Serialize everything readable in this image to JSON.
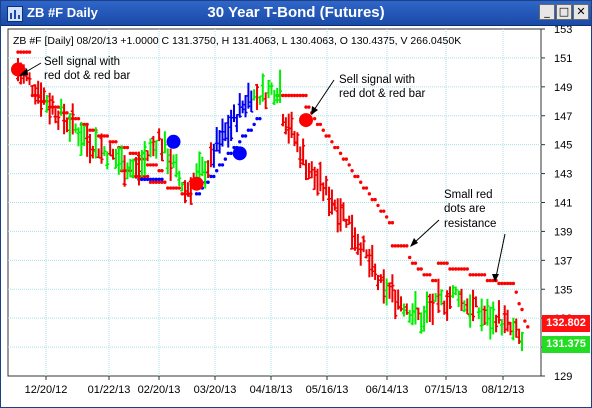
{
  "window": {
    "title": "ZB #F Daily",
    "chart_title": "30 Year T-Bond (Futures)",
    "controls": {
      "minimize": "_",
      "maximize": "□",
      "close": "✕"
    }
  },
  "header_line": "ZB #F [Daily] 08/20/13 +1.0000 C 131.3750, H 131.4063, L 130.4063, O 130.4375, V 266.0450K",
  "price_tags": {
    "red": "132.802",
    "green": "131.375"
  },
  "colors": {
    "up_bar": "#00ee00",
    "down_bar": "#ee0000",
    "blue_bar": "#0000ee",
    "grid": "#a8e0e8",
    "sell_signal": "#ff0000",
    "buy_signal": "#0000ff"
  },
  "annotations": [
    {
      "id": "sell-1",
      "lines": [
        "Sell signal with",
        "red dot & red bar"
      ]
    },
    {
      "id": "sell-2",
      "lines": [
        "Sell signal with",
        "red dot & red bar"
      ]
    },
    {
      "id": "resistance",
      "lines": [
        "Small red",
        "dots are",
        "resistance"
      ]
    }
  ],
  "chart_data": {
    "type": "ohlc",
    "title": "",
    "x_tick_labels": [
      "12/20/12",
      "01/22/13",
      "02/20/13",
      "03/20/13",
      "04/18/13",
      "05/16/13",
      "06/14/13",
      "07/15/13",
      "08/12/13"
    ],
    "y_ticks": [
      129,
      131,
      133,
      135,
      137,
      139,
      141,
      143,
      145,
      147,
      149,
      151,
      153
    ],
    "ylim": [
      129,
      153
    ],
    "grid": true,
    "last_close": 131.375,
    "last_high": 131.4063,
    "last_low": 130.4063,
    "last_open": 130.4375,
    "change": 1.0,
    "volume": "266.0450K",
    "price_segments": [
      {
        "bars": 10,
        "start": 150.2,
        "end": 148.3,
        "color": "red"
      },
      {
        "bars": 14,
        "start": 148.0,
        "end": 145.5,
        "color": "mixed"
      },
      {
        "bars": 18,
        "start": 145.3,
        "end": 143.2,
        "color": "mixed"
      },
      {
        "bars": 8,
        "start": 143.4,
        "end": 145.5,
        "color": "mixed"
      },
      {
        "bars": 8,
        "start": 145.0,
        "end": 142.3,
        "color": "mixed"
      },
      {
        "bars": 10,
        "start": 141.8,
        "end": 143.8,
        "color": "mixed"
      },
      {
        "bars": 14,
        "start": 144.5,
        "end": 148.6,
        "color": "blue"
      },
      {
        "bars": 10,
        "start": 148.3,
        "end": 149.0,
        "color": "mixed"
      },
      {
        "bars": 10,
        "start": 147.2,
        "end": 143.3,
        "color": "red"
      },
      {
        "bars": 12,
        "start": 143.0,
        "end": 140.2,
        "color": "red"
      },
      {
        "bars": 14,
        "start": 140.0,
        "end": 134.8,
        "color": "red"
      },
      {
        "bars": 14,
        "start": 135.0,
        "end": 132.8,
        "color": "mixed"
      },
      {
        "bars": 12,
        "start": 133.5,
        "end": 134.8,
        "color": "mixed"
      },
      {
        "bars": 12,
        "start": 134.2,
        "end": 132.8,
        "color": "mixed"
      },
      {
        "bars": 10,
        "start": 133.2,
        "end": 131.4,
        "color": "mixed"
      }
    ],
    "stop_dots": [
      {
        "from_bar": 0,
        "to_bar": 4,
        "level": 151.4,
        "color": "red"
      },
      {
        "from_bar": 5,
        "to_bar": 50,
        "level": 148.5,
        "to_level": 143.2,
        "color": "red"
      },
      {
        "from_bar": 36,
        "to_bar": 60,
        "level": 143.2,
        "to_level": 141.6,
        "color": "red"
      },
      {
        "from_bar": 42,
        "to_bar": 50,
        "level": 142.6,
        "color": "blue"
      },
      {
        "from_bar": 62,
        "to_bar": 84,
        "level": 141.5,
        "to_level": 146.9,
        "color": "blue"
      },
      {
        "from_bar": 90,
        "to_bar": 100,
        "level": 148.4,
        "color": "red"
      },
      {
        "from_bar": 100,
        "to_bar": 130,
        "level": 147.7,
        "to_level": 139.4,
        "color": "red"
      },
      {
        "from_bar": 130,
        "to_bar": 135,
        "level": 138.0,
        "color": "red"
      },
      {
        "from_bar": 136,
        "to_bar": 145,
        "level": 137.0,
        "to_level": 135.5,
        "color": "red"
      },
      {
        "from_bar": 146,
        "to_bar": 166,
        "level": 136.8,
        "to_level": 135.6,
        "color": "red"
      },
      {
        "from_bar": 167,
        "to_bar": 172,
        "level": 135.4,
        "color": "red"
      },
      {
        "from_bar": 173,
        "to_bar": 177,
        "level": 134.8,
        "to_level": 132.2,
        "color": "red"
      }
    ],
    "signals": [
      {
        "bar": 0,
        "price": 150.2,
        "color": "red"
      },
      {
        "bar": 54,
        "price": 145.2,
        "color": "blue"
      },
      {
        "bar": 62,
        "price": 142.3,
        "color": "red"
      },
      {
        "bar": 77,
        "price": 144.4,
        "color": "blue"
      },
      {
        "bar": 100,
        "price": 146.7,
        "color": "red"
      }
    ]
  }
}
